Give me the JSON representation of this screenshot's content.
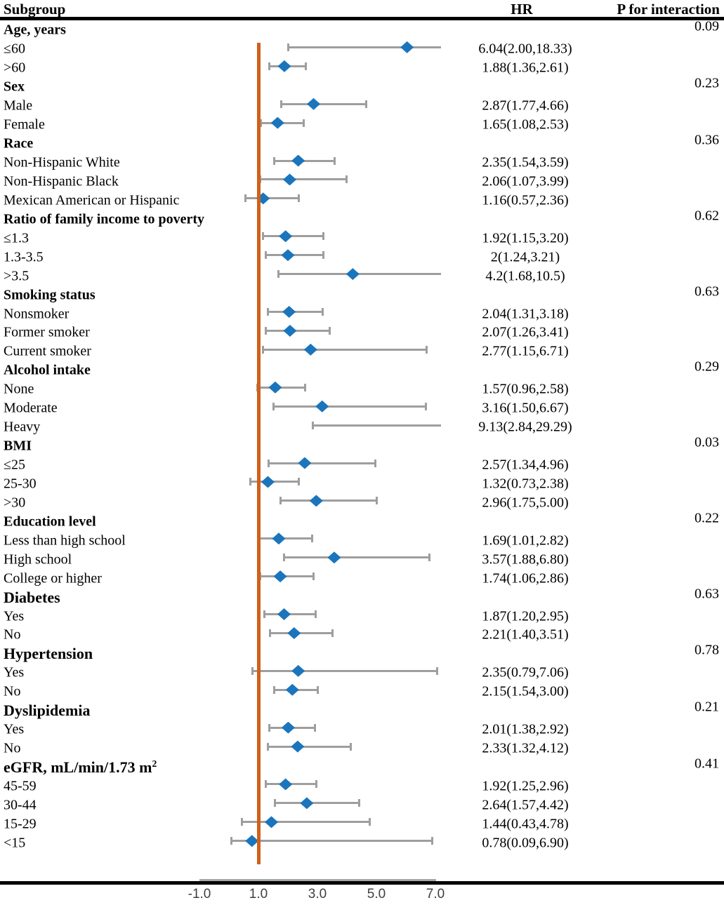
{
  "header": {
    "subgroup": "Subgroup",
    "hr": "HR",
    "p_interaction": "P for interaction"
  },
  "colors": {
    "diamond": "#1b75bc",
    "ci_bar": "#9e9e9e",
    "ref_line": "#d0601a",
    "axis_line": "#a6a6a6",
    "rule": "#000000"
  },
  "chart_data": {
    "type": "forest",
    "title": "",
    "xlabel": "",
    "x_axis": {
      "ticks": [
        "-1.0",
        "1.0",
        "3.0",
        "5.0",
        "7.0"
      ],
      "tick_values": [
        -1.0,
        1.0,
        3.0,
        5.0,
        7.0
      ],
      "reference_value": 1.0,
      "plot_clip_max_value": 7.2
    },
    "legend": "none",
    "rows": [
      {
        "kind": "group",
        "label": "Age, years",
        "p": "0.09",
        "large": false
      },
      {
        "kind": "item",
        "label": "≤60",
        "hr": 6.04,
        "ci_low": 2.0,
        "ci_high": 18.33,
        "hr_text": "6.04(2.00,18.33)"
      },
      {
        "kind": "item",
        "label": ">60",
        "hr": 1.88,
        "ci_low": 1.36,
        "ci_high": 2.61,
        "hr_text": "1.88(1.36,2.61)"
      },
      {
        "kind": "group",
        "label": "Sex",
        "p": "0.23",
        "large": false
      },
      {
        "kind": "item",
        "label": "Male",
        "hr": 2.87,
        "ci_low": 1.77,
        "ci_high": 4.66,
        "hr_text": "2.87(1.77,4.66)"
      },
      {
        "kind": "item",
        "label": "Female",
        "hr": 1.65,
        "ci_low": 1.08,
        "ci_high": 2.53,
        "hr_text": "1.65(1.08,2.53)"
      },
      {
        "kind": "group",
        "label": "Race",
        "p": "0.36",
        "large": false
      },
      {
        "kind": "item",
        "label": "Non-Hispanic White",
        "hr": 2.35,
        "ci_low": 1.54,
        "ci_high": 3.59,
        "hr_text": "2.35(1.54,3.59)"
      },
      {
        "kind": "item",
        "label": "Non-Hispanic Black",
        "hr": 2.06,
        "ci_low": 1.07,
        "ci_high": 3.99,
        "hr_text": "2.06(1.07,3.99)"
      },
      {
        "kind": "item",
        "label": "Mexican American or Hispanic",
        "hr": 1.16,
        "ci_low": 0.57,
        "ci_high": 2.36,
        "hr_text": "1.16(0.57,2.36)"
      },
      {
        "kind": "group",
        "label": "Ratio of family income to poverty",
        "p": "0.62",
        "large": false
      },
      {
        "kind": "item",
        "label": "≤1.3",
        "hr": 1.92,
        "ci_low": 1.15,
        "ci_high": 3.2,
        "hr_text": "1.92(1.15,3.20)"
      },
      {
        "kind": "item",
        "label": "1.3-3.5",
        "hr": 2.0,
        "ci_low": 1.24,
        "ci_high": 3.21,
        "hr_text": "2(1.24,3.21)"
      },
      {
        "kind": "item",
        "label": ">3.5",
        "hr": 4.2,
        "ci_low": 1.68,
        "ci_high": 10.5,
        "hr_text": "4.2(1.68,10.5)"
      },
      {
        "kind": "group",
        "label": "Smoking status",
        "p": "0.63",
        "large": false
      },
      {
        "kind": "item",
        "label": "Nonsmoker",
        "hr": 2.04,
        "ci_low": 1.31,
        "ci_high": 3.18,
        "hr_text": "2.04(1.31,3.18)"
      },
      {
        "kind": "item",
        "label": "Former smoker",
        "hr": 2.07,
        "ci_low": 1.26,
        "ci_high": 3.41,
        "hr_text": "2.07(1.26,3.41)"
      },
      {
        "kind": "item",
        "label": "Current smoker",
        "hr": 2.77,
        "ci_low": 1.15,
        "ci_high": 6.71,
        "hr_text": "2.77(1.15,6.71)"
      },
      {
        "kind": "group",
        "label": "Alcohol intake",
        "p": "0.29",
        "large": false
      },
      {
        "kind": "item",
        "label": "None",
        "hr": 1.57,
        "ci_low": 0.96,
        "ci_high": 2.58,
        "hr_text": "1.57(0.96,2.58)"
      },
      {
        "kind": "item",
        "label": "Moderate",
        "hr": 3.16,
        "ci_low": 1.5,
        "ci_high": 6.67,
        "hr_text": "3.16(1.50,6.67)"
      },
      {
        "kind": "item",
        "label": "Heavy",
        "hr": 9.13,
        "ci_low": 2.84,
        "ci_high": 29.29,
        "hr_text": "9.13(2.84,29.29)"
      },
      {
        "kind": "group",
        "label": "BMI",
        "p": "0.03",
        "large": false
      },
      {
        "kind": "item",
        "label": "≤25",
        "hr": 2.57,
        "ci_low": 1.34,
        "ci_high": 4.96,
        "hr_text": "2.57(1.34,4.96)"
      },
      {
        "kind": "item",
        "label": "25-30",
        "hr": 1.32,
        "ci_low": 0.73,
        "ci_high": 2.38,
        "hr_text": "1.32(0.73,2.38)"
      },
      {
        "kind": "item",
        "label": ">30",
        "hr": 2.96,
        "ci_low": 1.75,
        "ci_high": 5.0,
        "hr_text": "2.96(1.75,5.00)"
      },
      {
        "kind": "group",
        "label": "Education level",
        "p": "0.22",
        "large": false
      },
      {
        "kind": "item",
        "label": "Less than high school",
        "hr": 1.69,
        "ci_low": 1.01,
        "ci_high": 2.82,
        "hr_text": "1.69(1.01,2.82)"
      },
      {
        "kind": "item",
        "label": "High school",
        "hr": 3.57,
        "ci_low": 1.88,
        "ci_high": 6.8,
        "hr_text": "3.57(1.88,6.80)"
      },
      {
        "kind": "item",
        "label": "College or higher",
        "hr": 1.74,
        "ci_low": 1.06,
        "ci_high": 2.86,
        "hr_text": "1.74(1.06,2.86)"
      },
      {
        "kind": "group",
        "label": "Diabetes",
        "p": "0.63",
        "large": true
      },
      {
        "kind": "item",
        "label": "Yes",
        "hr": 1.87,
        "ci_low": 1.2,
        "ci_high": 2.95,
        "hr_text": "1.87(1.20,2.95)"
      },
      {
        "kind": "item",
        "label": "No",
        "hr": 2.21,
        "ci_low": 1.4,
        "ci_high": 3.51,
        "hr_text": "2.21(1.40,3.51)"
      },
      {
        "kind": "group",
        "label": "Hypertension",
        "p": "0.78",
        "large": true
      },
      {
        "kind": "item",
        "label": "Yes",
        "hr": 2.35,
        "ci_low": 0.79,
        "ci_high": 7.06,
        "hr_text": "2.35(0.79,7.06)"
      },
      {
        "kind": "item",
        "label": "No",
        "hr": 2.15,
        "ci_low": 1.54,
        "ci_high": 3.0,
        "hr_text": "2.15(1.54,3.00)"
      },
      {
        "kind": "group",
        "label": "Dyslipidemia",
        "p": "0.21",
        "large": true
      },
      {
        "kind": "item",
        "label": "Yes",
        "hr": 2.01,
        "ci_low": 1.38,
        "ci_high": 2.92,
        "hr_text": "2.01(1.38,2.92)"
      },
      {
        "kind": "item",
        "label": "No",
        "hr": 2.33,
        "ci_low": 1.32,
        "ci_high": 4.12,
        "hr_text": "2.33(1.32,4.12)"
      },
      {
        "kind": "group",
        "label": "eGFR, mL/min/1.73 m",
        "label_sup": "2",
        "p": "0.41",
        "large": true
      },
      {
        "kind": "item",
        "label": "45-59",
        "hr": 1.92,
        "ci_low": 1.25,
        "ci_high": 2.96,
        "hr_text": "1.92(1.25,2.96)"
      },
      {
        "kind": "item",
        "label": "30-44",
        "hr": 2.64,
        "ci_low": 1.57,
        "ci_high": 4.42,
        "hr_text": "2.64(1.57,4.42)"
      },
      {
        "kind": "item",
        "label": "15-29",
        "hr": 1.44,
        "ci_low": 0.43,
        "ci_high": 4.78,
        "hr_text": "1.44(0.43,4.78)"
      },
      {
        "kind": "item",
        "label": "<15",
        "hr": 0.78,
        "ci_low": 0.09,
        "ci_high": 6.9,
        "hr_text": "0.78(0.09,6.90)"
      }
    ]
  }
}
